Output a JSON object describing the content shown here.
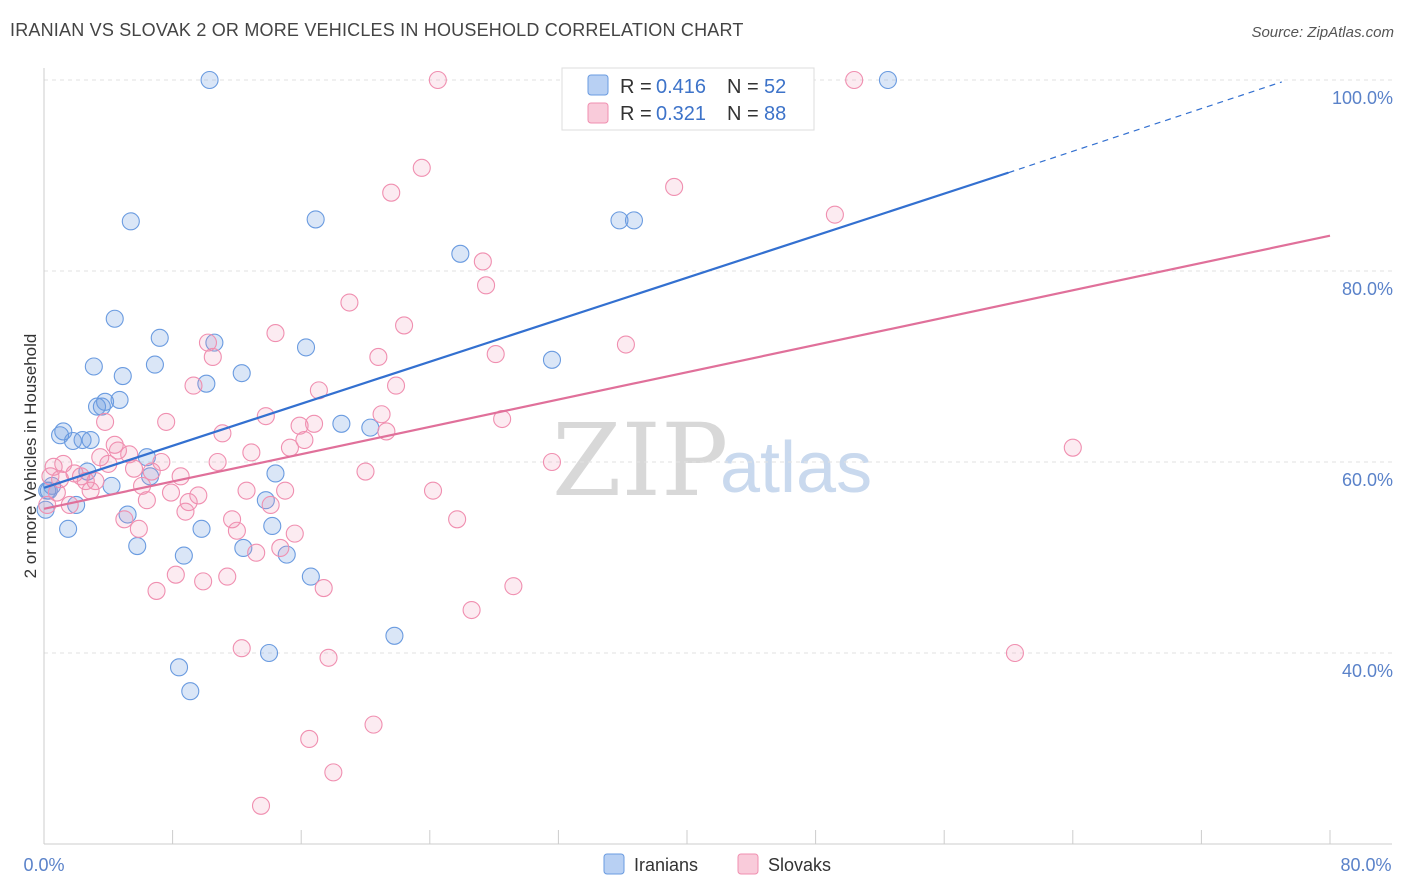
{
  "title": "IRANIAN VS SLOVAK 2 OR MORE VEHICLES IN HOUSEHOLD CORRELATION CHART",
  "source": "Source: ZipAtlas.com",
  "watermark": {
    "zip": "ZIP",
    "atlas": "atlas"
  },
  "chart_data": {
    "type": "scatter",
    "title": "IRANIAN VS SLOVAK 2 OR MORE VEHICLES IN HOUSEHOLD CORRELATION CHART",
    "xlabel": "",
    "ylabel": "2 or more Vehicles in Household",
    "xlim": [
      0,
      80
    ],
    "ylim": [
      20,
      102
    ],
    "x_tick_labels": [
      "0.0%",
      "80.0%"
    ],
    "y_ticks": [
      40,
      60,
      80,
      100
    ],
    "y_tick_labels": [
      "40.0%",
      "60.0%",
      "80.0%",
      "100.0%"
    ],
    "grid": true,
    "colors": {
      "Iranians": "#6a9be0",
      "Slovaks": "#f08fb0",
      "Iranians_line": "#3370d0",
      "Slovaks_line": "#e0709a"
    },
    "legend": [
      {
        "name": "Iranians",
        "R_label": "R =",
        "R": "0.416",
        "N_label": "N =",
        "N": "52"
      },
      {
        "name": "Slovaks",
        "R_label": "R =",
        "R": "0.321",
        "N_label": "N =",
        "N": "88"
      }
    ],
    "series": [
      {
        "name": "Iranians",
        "trend": {
          "x": [
            0,
            60
          ],
          "y": [
            57.3,
            90.3
          ],
          "dashed_to": [
            77,
            99.8
          ]
        },
        "points": [
          [
            0.1,
            55.0
          ],
          [
            0.3,
            57.0
          ],
          [
            0.5,
            57.5
          ],
          [
            1.0,
            62.8
          ],
          [
            1.2,
            63.2
          ],
          [
            1.5,
            53.0
          ],
          [
            1.8,
            62.2
          ],
          [
            2.0,
            55.5
          ],
          [
            2.4,
            62.3
          ],
          [
            2.7,
            59.0
          ],
          [
            2.9,
            62.3
          ],
          [
            3.1,
            70.0
          ],
          [
            3.3,
            65.8
          ],
          [
            3.6,
            65.8
          ],
          [
            3.8,
            66.3
          ],
          [
            4.2,
            57.5
          ],
          [
            4.4,
            75.0
          ],
          [
            4.7,
            66.5
          ],
          [
            4.9,
            69.0
          ],
          [
            5.2,
            54.5
          ],
          [
            5.4,
            85.2
          ],
          [
            5.8,
            51.2
          ],
          [
            6.4,
            60.5
          ],
          [
            6.6,
            58.5
          ],
          [
            6.9,
            70.2
          ],
          [
            7.2,
            73.0
          ],
          [
            8.4,
            38.5
          ],
          [
            8.7,
            50.2
          ],
          [
            9.1,
            36.0
          ],
          [
            9.8,
            53.0
          ],
          [
            10.1,
            68.2
          ],
          [
            10.3,
            100.0
          ],
          [
            10.6,
            72.5
          ],
          [
            12.3,
            69.3
          ],
          [
            12.4,
            51.0
          ],
          [
            13.8,
            56.0
          ],
          [
            14.0,
            40.0
          ],
          [
            14.2,
            53.3
          ],
          [
            14.4,
            58.8
          ],
          [
            15.1,
            50.3
          ],
          [
            16.3,
            72.0
          ],
          [
            16.6,
            48.0
          ],
          [
            16.9,
            85.4
          ],
          [
            18.5,
            64.0
          ],
          [
            20.3,
            63.6
          ],
          [
            21.8,
            41.8
          ],
          [
            25.9,
            81.8
          ],
          [
            31.6,
            70.7
          ],
          [
            35.8,
            85.3
          ],
          [
            36.7,
            85.3
          ],
          [
            52.5,
            100.0
          ],
          [
            0.2,
            57.0
          ]
        ]
      },
      {
        "name": "Slovaks",
        "trend": {
          "x": [
            0,
            80
          ],
          "y": [
            55.1,
            83.7
          ]
        },
        "points": [
          [
            0.2,
            55.5
          ],
          [
            0.4,
            58.5
          ],
          [
            0.6,
            59.5
          ],
          [
            0.8,
            56.8
          ],
          [
            1.0,
            58.2
          ],
          [
            1.2,
            59.8
          ],
          [
            1.6,
            55.5
          ],
          [
            1.9,
            58.8
          ],
          [
            2.3,
            58.5
          ],
          [
            2.6,
            58.0
          ],
          [
            2.9,
            57.0
          ],
          [
            3.2,
            58.0
          ],
          [
            3.5,
            60.5
          ],
          [
            3.8,
            64.2
          ],
          [
            4.0,
            59.8
          ],
          [
            4.4,
            61.8
          ],
          [
            4.6,
            61.2
          ],
          [
            5.0,
            54.0
          ],
          [
            5.3,
            60.8
          ],
          [
            5.6,
            59.3
          ],
          [
            5.9,
            53.0
          ],
          [
            6.1,
            57.5
          ],
          [
            6.4,
            56.0
          ],
          [
            6.7,
            59.0
          ],
          [
            7.0,
            46.5
          ],
          [
            7.3,
            60.0
          ],
          [
            7.6,
            64.2
          ],
          [
            7.9,
            56.8
          ],
          [
            8.2,
            48.2
          ],
          [
            8.5,
            58.5
          ],
          [
            8.8,
            54.8
          ],
          [
            9.0,
            55.8
          ],
          [
            9.3,
            68.0
          ],
          [
            9.6,
            56.5
          ],
          [
            9.9,
            47.5
          ],
          [
            10.2,
            72.5
          ],
          [
            10.5,
            71.0
          ],
          [
            10.8,
            60.0
          ],
          [
            11.1,
            63.0
          ],
          [
            11.4,
            48.0
          ],
          [
            11.7,
            54.0
          ],
          [
            12.0,
            52.8
          ],
          [
            12.3,
            40.5
          ],
          [
            12.6,
            57.0
          ],
          [
            12.9,
            61.0
          ],
          [
            13.2,
            50.5
          ],
          [
            13.5,
            24.0
          ],
          [
            13.8,
            64.8
          ],
          [
            14.1,
            55.5
          ],
          [
            14.4,
            73.5
          ],
          [
            14.7,
            51.0
          ],
          [
            15.0,
            57.0
          ],
          [
            15.3,
            61.5
          ],
          [
            15.6,
            52.5
          ],
          [
            15.9,
            63.8
          ],
          [
            16.2,
            62.3
          ],
          [
            16.5,
            31.0
          ],
          [
            16.8,
            64.0
          ],
          [
            17.1,
            67.5
          ],
          [
            17.4,
            46.8
          ],
          [
            17.7,
            39.5
          ],
          [
            18.0,
            27.5
          ],
          [
            19.0,
            76.7
          ],
          [
            20.0,
            59.0
          ],
          [
            20.5,
            32.5
          ],
          [
            20.8,
            71.0
          ],
          [
            21.0,
            65.0
          ],
          [
            21.3,
            63.2
          ],
          [
            21.6,
            88.2
          ],
          [
            21.9,
            68.0
          ],
          [
            22.4,
            74.3
          ],
          [
            23.5,
            90.8
          ],
          [
            24.2,
            57.0
          ],
          [
            24.5,
            100.0
          ],
          [
            25.7,
            54.0
          ],
          [
            26.6,
            44.5
          ],
          [
            27.3,
            81.0
          ],
          [
            27.5,
            78.5
          ],
          [
            28.1,
            71.3
          ],
          [
            28.5,
            64.5
          ],
          [
            29.2,
            47.0
          ],
          [
            31.6,
            60.0
          ],
          [
            36.2,
            72.3
          ],
          [
            39.2,
            88.8
          ],
          [
            49.2,
            85.9
          ],
          [
            50.4,
            100.0
          ],
          [
            60.4,
            40.0
          ],
          [
            64.0,
            61.5
          ]
        ]
      }
    ]
  }
}
